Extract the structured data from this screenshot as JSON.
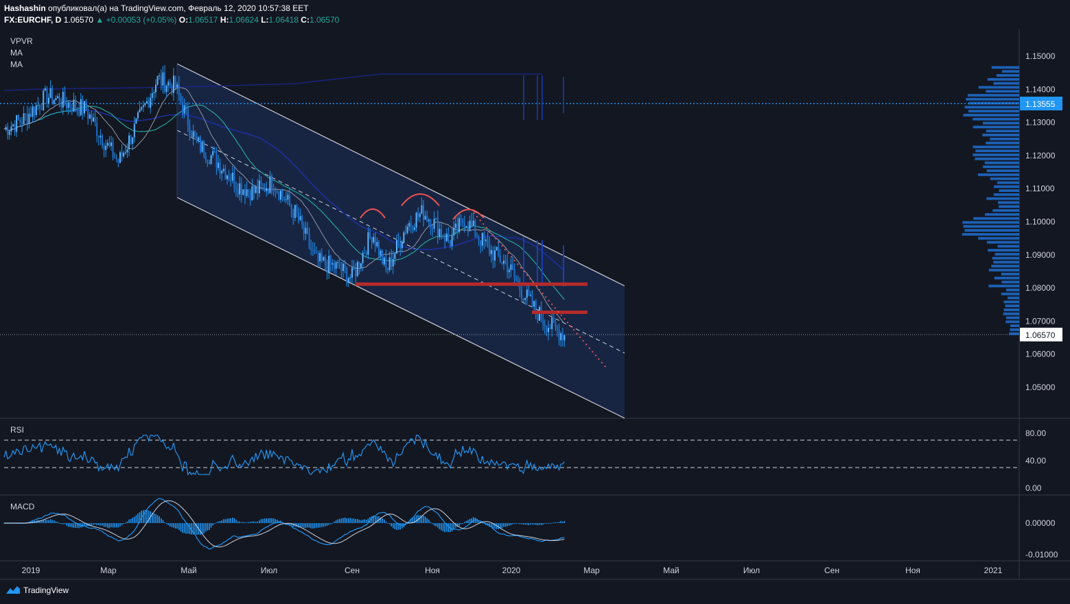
{
  "header": {
    "author": "Hashashin",
    "published": "опубликовал(а) на TradingView.com, Февраль 12, 2020 10:57:38 EET",
    "symbol": "FX:EURCHF, D",
    "last": "1.06570",
    "change": "▲ +0.00053 (+0.05%)",
    "o_label": "O:",
    "o_val": "1.06517",
    "h_label": "H:",
    "h_val": "1.06624",
    "l_label": "L:",
    "l_val": "1.06418",
    "c_label": "C:",
    "c_val": "1.06570"
  },
  "indicators": {
    "vpvr": "VPVR",
    "ma1": "MA",
    "ma2": "MA",
    "rsi": "RSI",
    "macd": "MACD"
  },
  "footer": {
    "brand": "TradingView"
  },
  "colors": {
    "bg": "#131722",
    "candle": "#2196f3",
    "channel": "#1a2a4a",
    "red": "#b22b2b",
    "badge": "#2196f3"
  },
  "chart_data": [
    {
      "type": "candlestick",
      "symbol": "FX:EURCHF",
      "timeframe": "D",
      "ylim": [
        1.04,
        1.152
      ],
      "y_ticks": [
        "1.15000",
        "1.14000",
        "1.13000",
        "1.12000",
        "1.11000",
        "1.10000",
        "1.09000",
        "1.08000",
        "1.07000",
        "1.06000",
        "1.05000"
      ],
      "x_ticks": [
        "2019",
        "Мар",
        "Май",
        "Июл",
        "Сен",
        "Ноя",
        "2020",
        "Мар",
        "Май",
        "Июл",
        "Сен",
        "Ноя",
        "2021"
      ],
      "price_labels": {
        "poc": "1.13555",
        "last": "1.06570"
      },
      "close_series": [
        [
          "2019-01-01",
          1.128
        ],
        [
          "2019-01-15",
          1.131
        ],
        [
          "2019-02-01",
          1.138
        ],
        [
          "2019-02-15",
          1.136
        ],
        [
          "2019-03-01",
          1.134
        ],
        [
          "2019-03-15",
          1.124
        ],
        [
          "2019-03-25",
          1.118
        ],
        [
          "2019-04-10",
          1.132
        ],
        [
          "2019-04-22",
          1.143
        ],
        [
          "2019-05-05",
          1.141
        ],
        [
          "2019-05-20",
          1.124
        ],
        [
          "2019-06-05",
          1.118
        ],
        [
          "2019-06-20",
          1.111
        ],
        [
          "2019-07-01",
          1.109
        ],
        [
          "2019-07-15",
          1.112
        ],
        [
          "2019-08-01",
          1.102
        ],
        [
          "2019-08-15",
          1.088
        ],
        [
          "2019-09-01",
          1.086
        ],
        [
          "2019-09-10",
          1.083
        ],
        [
          "2019-09-25",
          1.097
        ],
        [
          "2019-10-05",
          1.085
        ],
        [
          "2019-10-20",
          1.099
        ],
        [
          "2019-11-01",
          1.103
        ],
        [
          "2019-11-10",
          1.099
        ],
        [
          "2019-11-20",
          1.094
        ],
        [
          "2019-12-01",
          1.101
        ],
        [
          "2019-12-10",
          1.096
        ],
        [
          "2019-12-20",
          1.091
        ],
        [
          "2020-01-01",
          1.087
        ],
        [
          "2020-01-10",
          1.08
        ],
        [
          "2020-01-20",
          1.074
        ],
        [
          "2020-01-30",
          1.069
        ],
        [
          "2020-02-12",
          1.0657
        ]
      ],
      "annotations": [
        "descending channel",
        "support 1.0805",
        "resistance 1.0725",
        "red dotted trendline",
        "three arcs (head and shoulders)"
      ]
    },
    {
      "type": "line",
      "title": "RSI",
      "ylim": [
        0,
        100
      ],
      "y_ticks": [
        "80.00",
        "40.00",
        "0.00"
      ],
      "levels": [
        70,
        30
      ]
    },
    {
      "type": "line",
      "title": "MACD",
      "y_ticks": [
        "0.00000",
        "-0.01000"
      ]
    }
  ]
}
